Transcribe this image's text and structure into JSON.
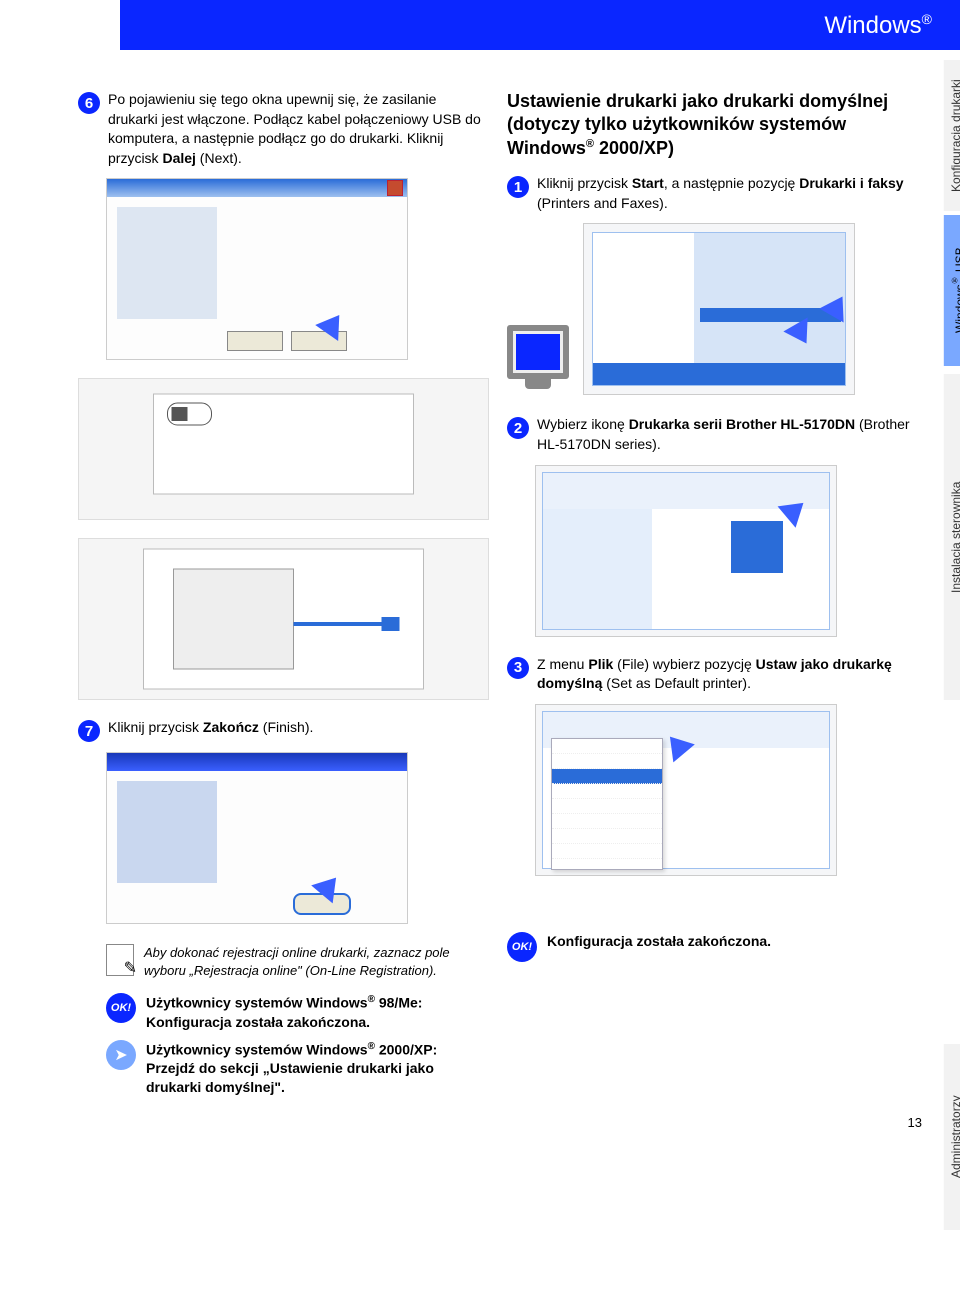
{
  "banner": {
    "title": "Windows",
    "registered": "®"
  },
  "left_col": {
    "step6": "Po pojawieniu się tego okna upewnij się, że  zasilanie drukarki jest włączone. Podłącz kabel połączeniowy USB do komputera, a następnie podłącz go do drukarki. Kliknij przycisk <b>Dalej</b> (Next).",
    "step7": "Kliknij przycisk <b>Zakończ</b> (Finish).",
    "note": "Aby dokonać rejestracji online drukarki, zaznacz pole wyboru „Rejestracja online\" (On-Line Registration).",
    "ok1": "Użytkownicy systemów Windows<sup>®</sup> 98/Me: Konfiguracja została zakończona.",
    "arrow1": "Użytkownicy systemów Windows<sup>®</sup> 2000/XP: Przejdź do sekcji „Ustawienie drukarki jako drukarki domyślnej\"."
  },
  "right_col": {
    "heading": "Ustawienie drukarki jako drukarki domyślnej (dotyczy tylko użytkowników systemów Windows<sup>®</sup> 2000/XP)",
    "step1": "Kliknij przycisk <b>Start</b>, a następnie pozycję <b>Drukarki i faksy</b> (Printers and Faxes).",
    "step2": "Wybierz ikonę <b>Drukarka serii Brother HL-5170DN</b> (Brother HL-5170DN series).",
    "step3": "Z menu <b>Plik</b> (File) wybierz pozycję <b>Ustaw jako drukarkę domyślną</b> (Set as Default printer).",
    "ok": "Konfiguracja została zakończona."
  },
  "tabs": {
    "t1": "Konfiguracja drukarki",
    "t2": "Windows<sup>®</sup> USB",
    "t3": "Instalacja sterownika",
    "t4": "Administratorzy"
  },
  "badges": {
    "n6": "6",
    "n7": "7",
    "n1": "1",
    "n2": "2",
    "n3": "3",
    "ok": "OK!"
  },
  "page_number": "13"
}
